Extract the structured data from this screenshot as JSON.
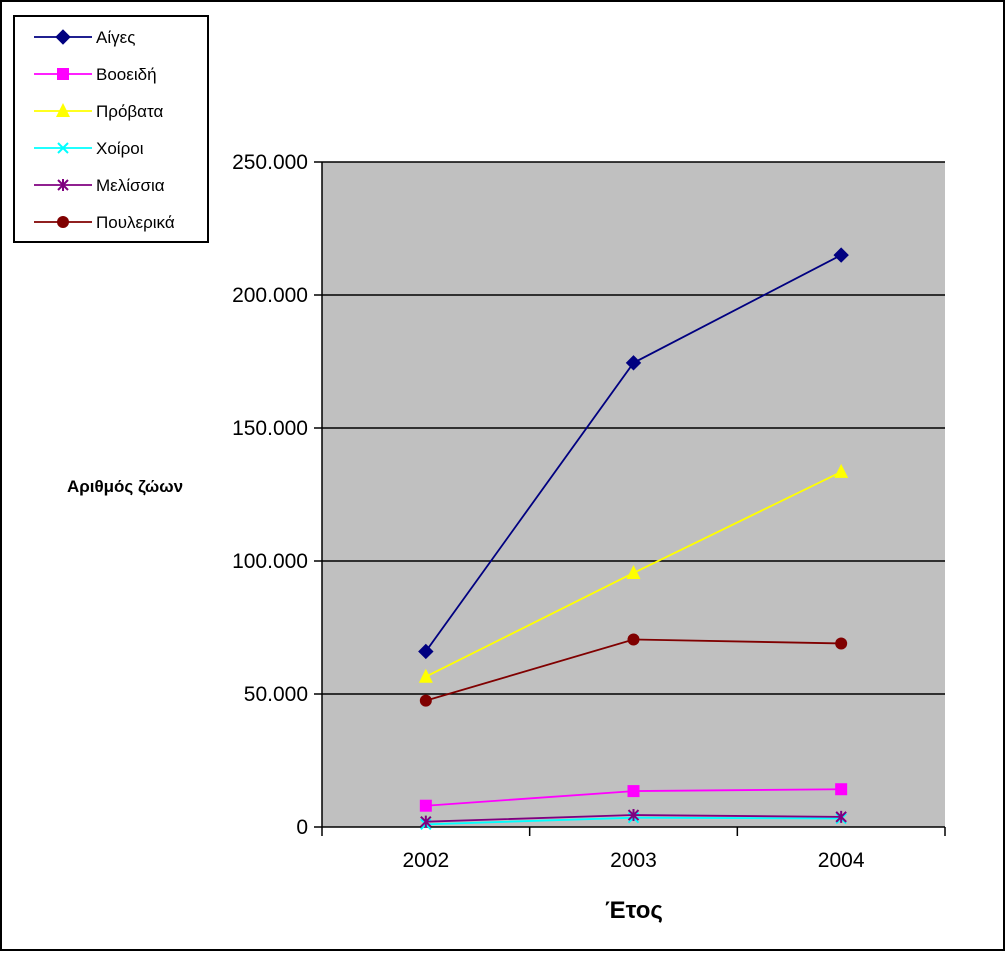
{
  "chart_data": {
    "type": "line",
    "categories": [
      "2002",
      "2003",
      "2004"
    ],
    "series": [
      {
        "name": "Αίγες",
        "values": [
          66000,
          174500,
          215000
        ],
        "color": "#000080",
        "marker": "diamond"
      },
      {
        "name": "Βοοειδή",
        "values": [
          8000,
          13500,
          14200
        ],
        "color": "#ff00ff",
        "marker": "square"
      },
      {
        "name": "Πρόβατα",
        "values": [
          56500,
          95500,
          133500
        ],
        "color": "#ffff00",
        "marker": "triangle"
      },
      {
        "name": "Χοίροι",
        "values": [
          1000,
          3500,
          3200
        ],
        "color": "#00ffff",
        "marker": "x"
      },
      {
        "name": "Μελίσσια",
        "values": [
          2000,
          4500,
          3800
        ],
        "color": "#800080",
        "marker": "star"
      },
      {
        "name": "Πουλερικά",
        "values": [
          47500,
          70500,
          69000
        ],
        "color": "#800000",
        "marker": "circle"
      }
    ],
    "xlabel": "Έτος",
    "ylabel": "Αριθμός ζώων",
    "ylim": [
      0,
      250000
    ],
    "yticks": [
      0,
      50000,
      100000,
      150000,
      200000,
      250000
    ],
    "ytick_labels": [
      "0",
      "50.000",
      "100.000",
      "150.000",
      "200.000",
      "250.000"
    ],
    "plot_background": "#c0c0c0",
    "grid": true,
    "legend_position": "top-left"
  }
}
